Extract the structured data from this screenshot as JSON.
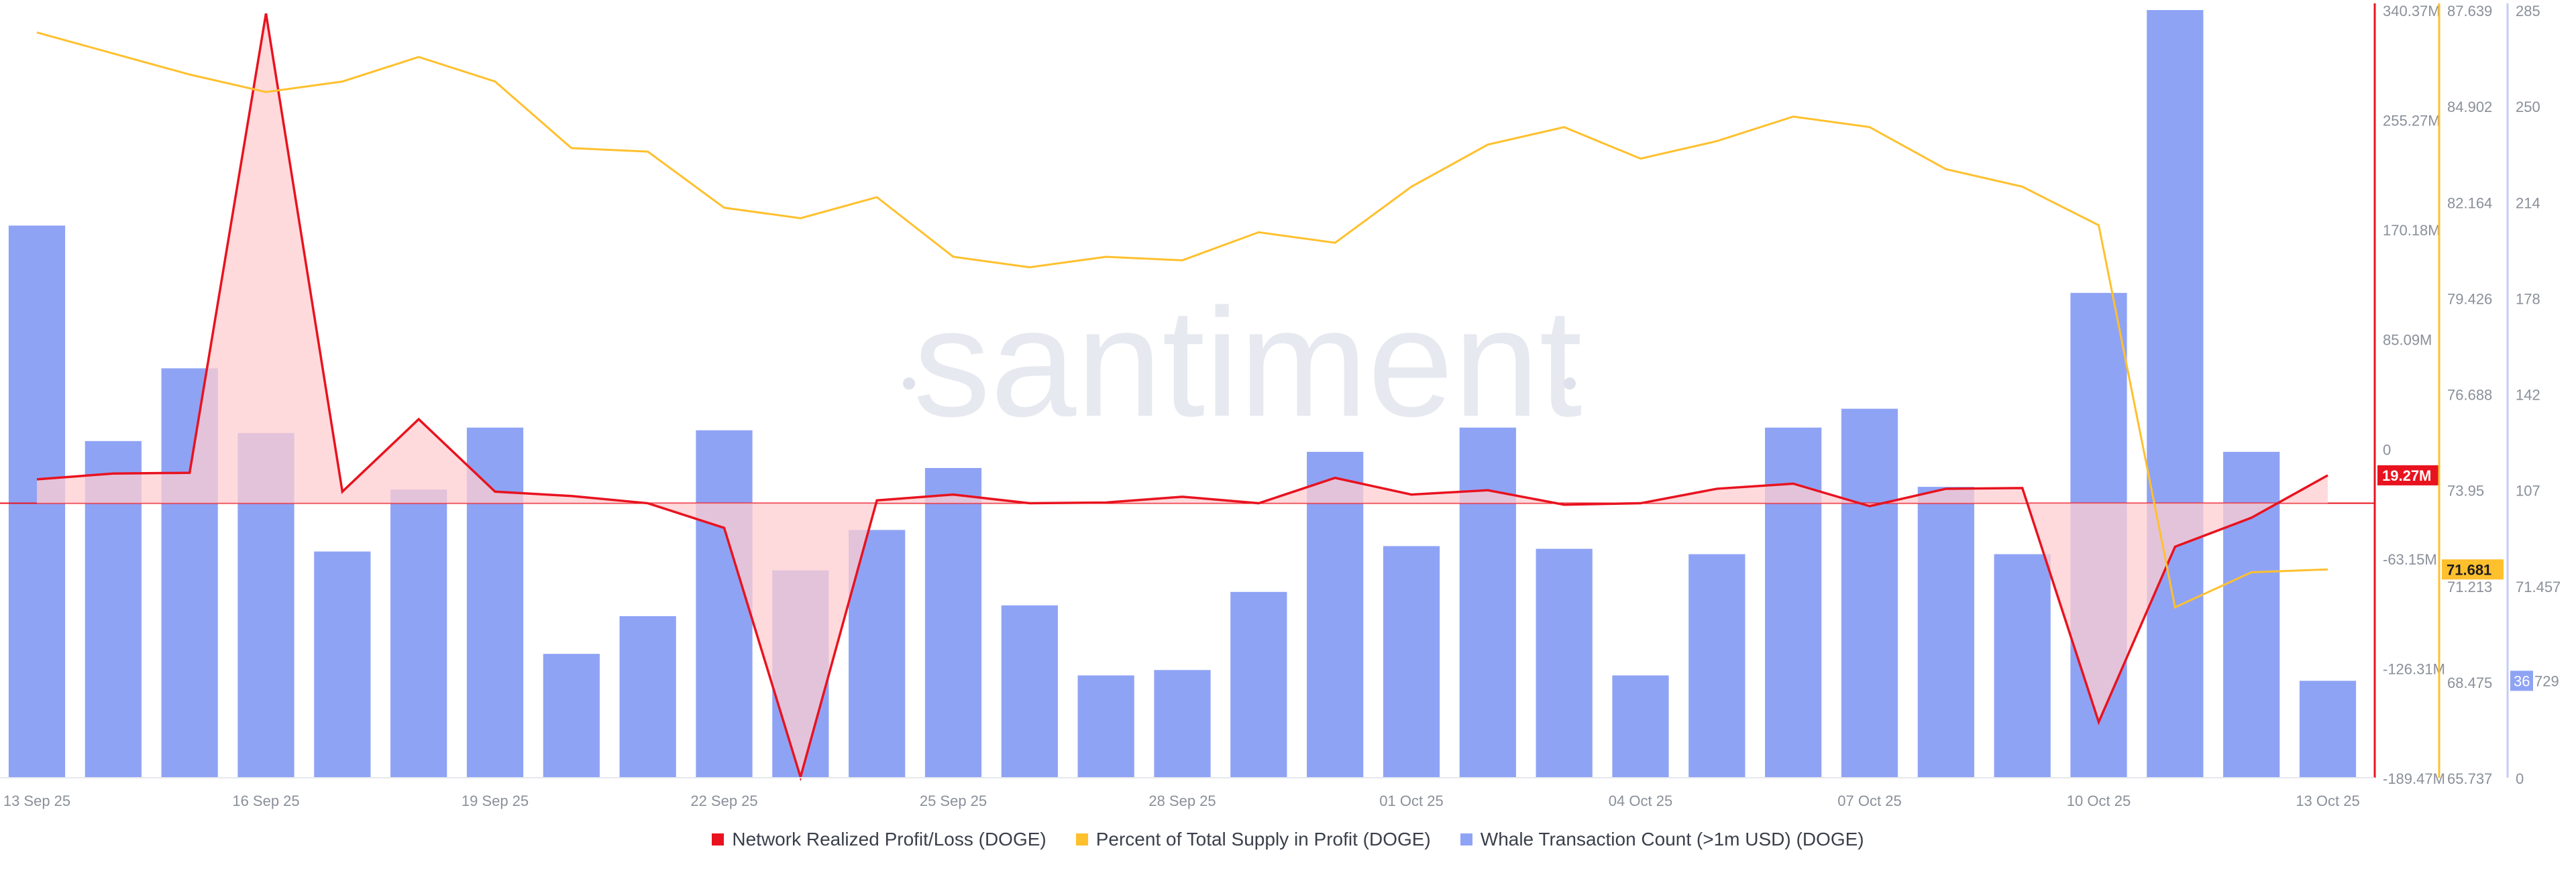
{
  "watermark": "santiment",
  "colors": {
    "pnl": "#e8131f",
    "pnl_fill": "#ffcdd0",
    "supply": "#ffc02e",
    "whale": "#8fa3f5",
    "axis_text": "#8a8f99",
    "zero_line": "#e8131f"
  },
  "legend": [
    {
      "label": "Network Realized Profit/Loss (DOGE)",
      "color": "#e8131f",
      "icon": "square-icon"
    },
    {
      "label": "Percent of Total Supply in Profit (DOGE)",
      "color": "#ffc02e",
      "icon": "square-icon"
    },
    {
      "label": "Whale Transaction Count (>1m USD) (DOGE)",
      "color": "#8fa3f5",
      "icon": "square-icon"
    }
  ],
  "chart_data": {
    "type": "bar",
    "title": "",
    "x_tick_labels": [
      {
        "index": 0,
        "label": "13 Sep 25"
      },
      {
        "index": 3,
        "label": "16 Sep 25"
      },
      {
        "index": 6,
        "label": "19 Sep 25"
      },
      {
        "index": 9,
        "label": "22 Sep 25"
      },
      {
        "index": 12,
        "label": "25 Sep 25"
      },
      {
        "index": 15,
        "label": "28 Sep 25"
      },
      {
        "index": 18,
        "label": "01 Oct 25"
      },
      {
        "index": 21,
        "label": "04 Oct 25"
      },
      {
        "index": 24,
        "label": "07 Oct 25"
      },
      {
        "index": 27,
        "label": "10 Oct 25"
      },
      {
        "index": 30,
        "label": "13 Oct 25"
      }
    ],
    "series": [
      {
        "name": "Whale Transaction Count (>1m USD) (DOGE)",
        "type": "bar",
        "axis": "right-outer",
        "values": [
          205,
          125,
          152,
          128,
          84,
          107,
          130,
          46,
          60,
          129,
          77,
          92,
          115,
          64,
          38,
          40,
          69,
          121,
          86,
          130,
          85,
          38,
          83,
          130,
          137,
          108,
          83,
          180,
          285,
          121,
          36
        ]
      },
      {
        "name": "Network Realized Profit/Loss (DOGE)",
        "type": "area",
        "axis": "right-inner",
        "values": [
          16.5,
          20.5,
          21.0,
          338.0,
          8.0,
          58.0,
          8.0,
          5.0,
          0.0,
          -17.0,
          -189.0,
          2.0,
          6.0,
          0.0,
          0.5,
          4.5,
          0.0,
          17.5,
          6.0,
          9.0,
          -1.0,
          0.0,
          10.0,
          13.5,
          -2.0,
          10.0,
          10.5,
          -151.0,
          -30.0,
          -10.0,
          19.27
        ]
      },
      {
        "name": "Percent of Total Supply in Profit (DOGE)",
        "type": "line",
        "axis": "right-middle",
        "values": [
          87.0,
          86.4,
          85.8,
          85.3,
          85.6,
          86.3,
          85.6,
          83.7,
          83.6,
          82.0,
          81.7,
          82.3,
          80.6,
          80.3,
          80.6,
          80.5,
          81.3,
          81.0,
          82.6,
          83.8,
          84.3,
          83.4,
          83.9,
          84.6,
          84.3,
          83.1,
          82.6,
          81.5,
          70.6,
          71.6,
          71.681
        ]
      }
    ],
    "axes": {
      "right-inner": {
        "ticks": [
          "340.37M",
          "255.27M",
          "170.18M",
          "85.09M",
          "0",
          "-63.15M",
          "-126.31M",
          "-189.47M"
        ],
        "range": [
          -189.47,
          340.37
        ],
        "current_label": "19.27M"
      },
      "right-middle": {
        "ticks": [
          "87.639",
          "84.902",
          "82.164",
          "79.426",
          "76.688",
          "73.95",
          "71.213",
          "68.475",
          "65.737"
        ],
        "range": [
          65.737,
          87.639
        ],
        "current_label": "71.681"
      },
      "right-outer": {
        "ticks": [
          "285",
          "250",
          "214",
          "178",
          "142",
          "107",
          "71.457",
          "36",
          "0"
        ],
        "range": [
          0,
          285
        ],
        "current_label": "36",
        "current_label_suffix": "729"
      }
    },
    "grid": false,
    "legend_position": "bottom-center"
  }
}
